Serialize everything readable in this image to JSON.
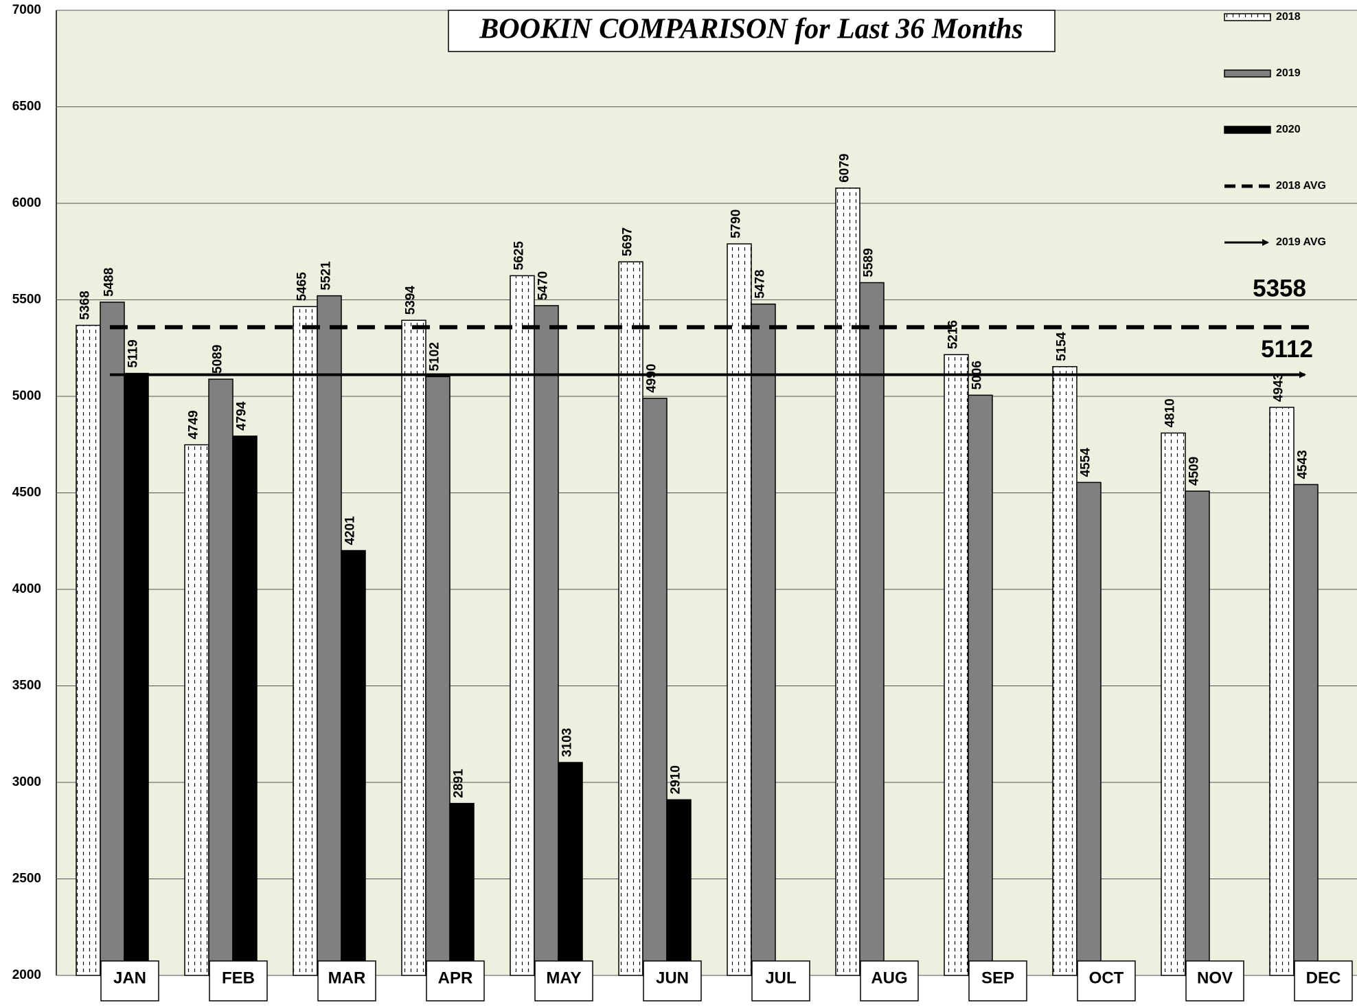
{
  "chart_data": {
    "type": "bar",
    "title": "BOOKIN COMPARISON for Last 36 Months",
    "categories": [
      "JAN",
      "FEB",
      "MAR",
      "APR",
      "MAY",
      "JUN",
      "JUL",
      "AUG",
      "SEP",
      "OCT",
      "NOV",
      "DEC"
    ],
    "series": [
      {
        "name": "2018",
        "color": "#ffffff",
        "values": [
          5368,
          4749,
          5465,
          5394,
          5625,
          5697,
          5790,
          6079,
          5216,
          5154,
          4810,
          4943
        ]
      },
      {
        "name": "2019",
        "color": "#808080",
        "values": [
          5488,
          5089,
          5521,
          5102,
          5470,
          4990,
          5478,
          5589,
          5006,
          4554,
          4509,
          4543
        ]
      },
      {
        "name": "2020",
        "color": "#000000",
        "values": [
          5119,
          4794,
          4201,
          2891,
          3103,
          2910,
          null,
          null,
          null,
          null,
          null,
          null
        ]
      }
    ],
    "averages": [
      {
        "name": "2018 AVG",
        "value": 5358,
        "style": "dashed"
      },
      {
        "name": "2019 AVG",
        "value": 5112,
        "style": "arrow"
      }
    ],
    "ylim": [
      2000,
      7000
    ],
    "yticks": [
      2000,
      2500,
      3000,
      3500,
      4000,
      4500,
      5000,
      5500,
      6000,
      6500,
      7000
    ],
    "grid": true
  }
}
